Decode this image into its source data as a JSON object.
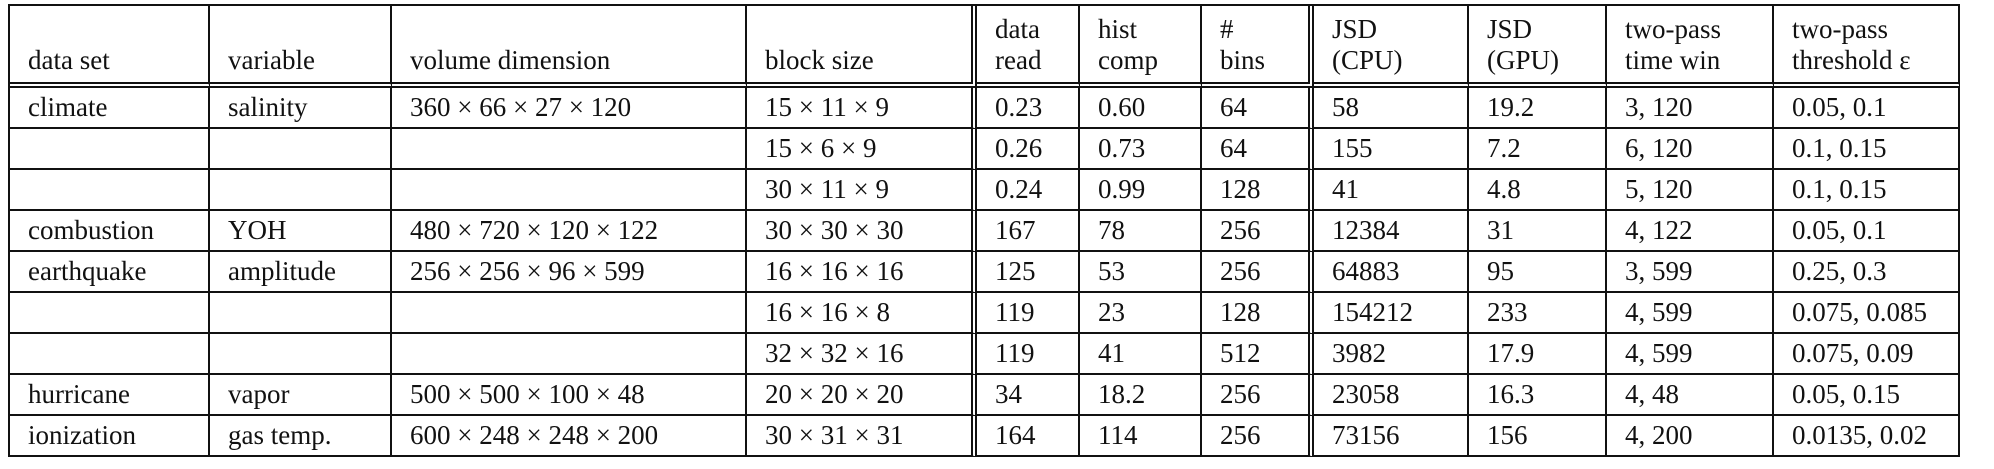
{
  "table": {
    "headers": [
      "data set",
      "variable",
      "volume dimension",
      "block size",
      "data\nread",
      "hist\ncomp",
      "#\nbins",
      "JSD\n(CPU)",
      "JSD\n(GPU)",
      "two-pass\ntime win",
      "two-pass\nthreshold ε"
    ],
    "rows": [
      [
        "climate",
        "salinity",
        "360 × 66 × 27 × 120",
        "15 × 11 × 9",
        "0.23",
        "0.60",
        "64",
        "58",
        "19.2",
        "3, 120",
        "0.05, 0.1"
      ],
      [
        "",
        "",
        "",
        "15 × 6 × 9",
        "0.26",
        "0.73",
        "64",
        "155",
        "7.2",
        "6, 120",
        "0.1, 0.15"
      ],
      [
        "",
        "",
        "",
        "30 × 11 × 9",
        "0.24",
        "0.99",
        "128",
        "41",
        "4.8",
        "5, 120",
        "0.1, 0.15"
      ],
      [
        "combustion",
        "YOH",
        "480 × 720 × 120 × 122",
        "30 × 30 × 30",
        "167",
        "78",
        "256",
        "12384",
        "31",
        "4, 122",
        "0.05, 0.1"
      ],
      [
        "earthquake",
        "amplitude",
        "256 × 256 × 96 × 599",
        "16 × 16 × 16",
        "125",
        "53",
        "256",
        "64883",
        "95",
        "3, 599",
        "0.25, 0.3"
      ],
      [
        "",
        "",
        "",
        "16 × 16 × 8",
        "119",
        "23",
        "128",
        "154212",
        "233",
        "4, 599",
        "0.075, 0.085"
      ],
      [
        "",
        "",
        "",
        "32 × 32 × 16",
        "119",
        "41",
        "512",
        "3982",
        "17.9",
        "4, 599",
        "0.075, 0.09"
      ],
      [
        "hurricane",
        "vapor",
        "500 × 500 × 100 × 48",
        "20 × 20 × 20",
        "34",
        "18.2",
        "256",
        "23058",
        "16.3",
        "4, 48",
        "0.05, 0.15"
      ],
      [
        "ionization",
        "gas temp.",
        "600 × 248 × 248 × 200",
        "30 × 31 × 31",
        "164",
        "114",
        "256",
        "73156",
        "156",
        "4, 200",
        "0.0135, 0.02"
      ]
    ]
  }
}
